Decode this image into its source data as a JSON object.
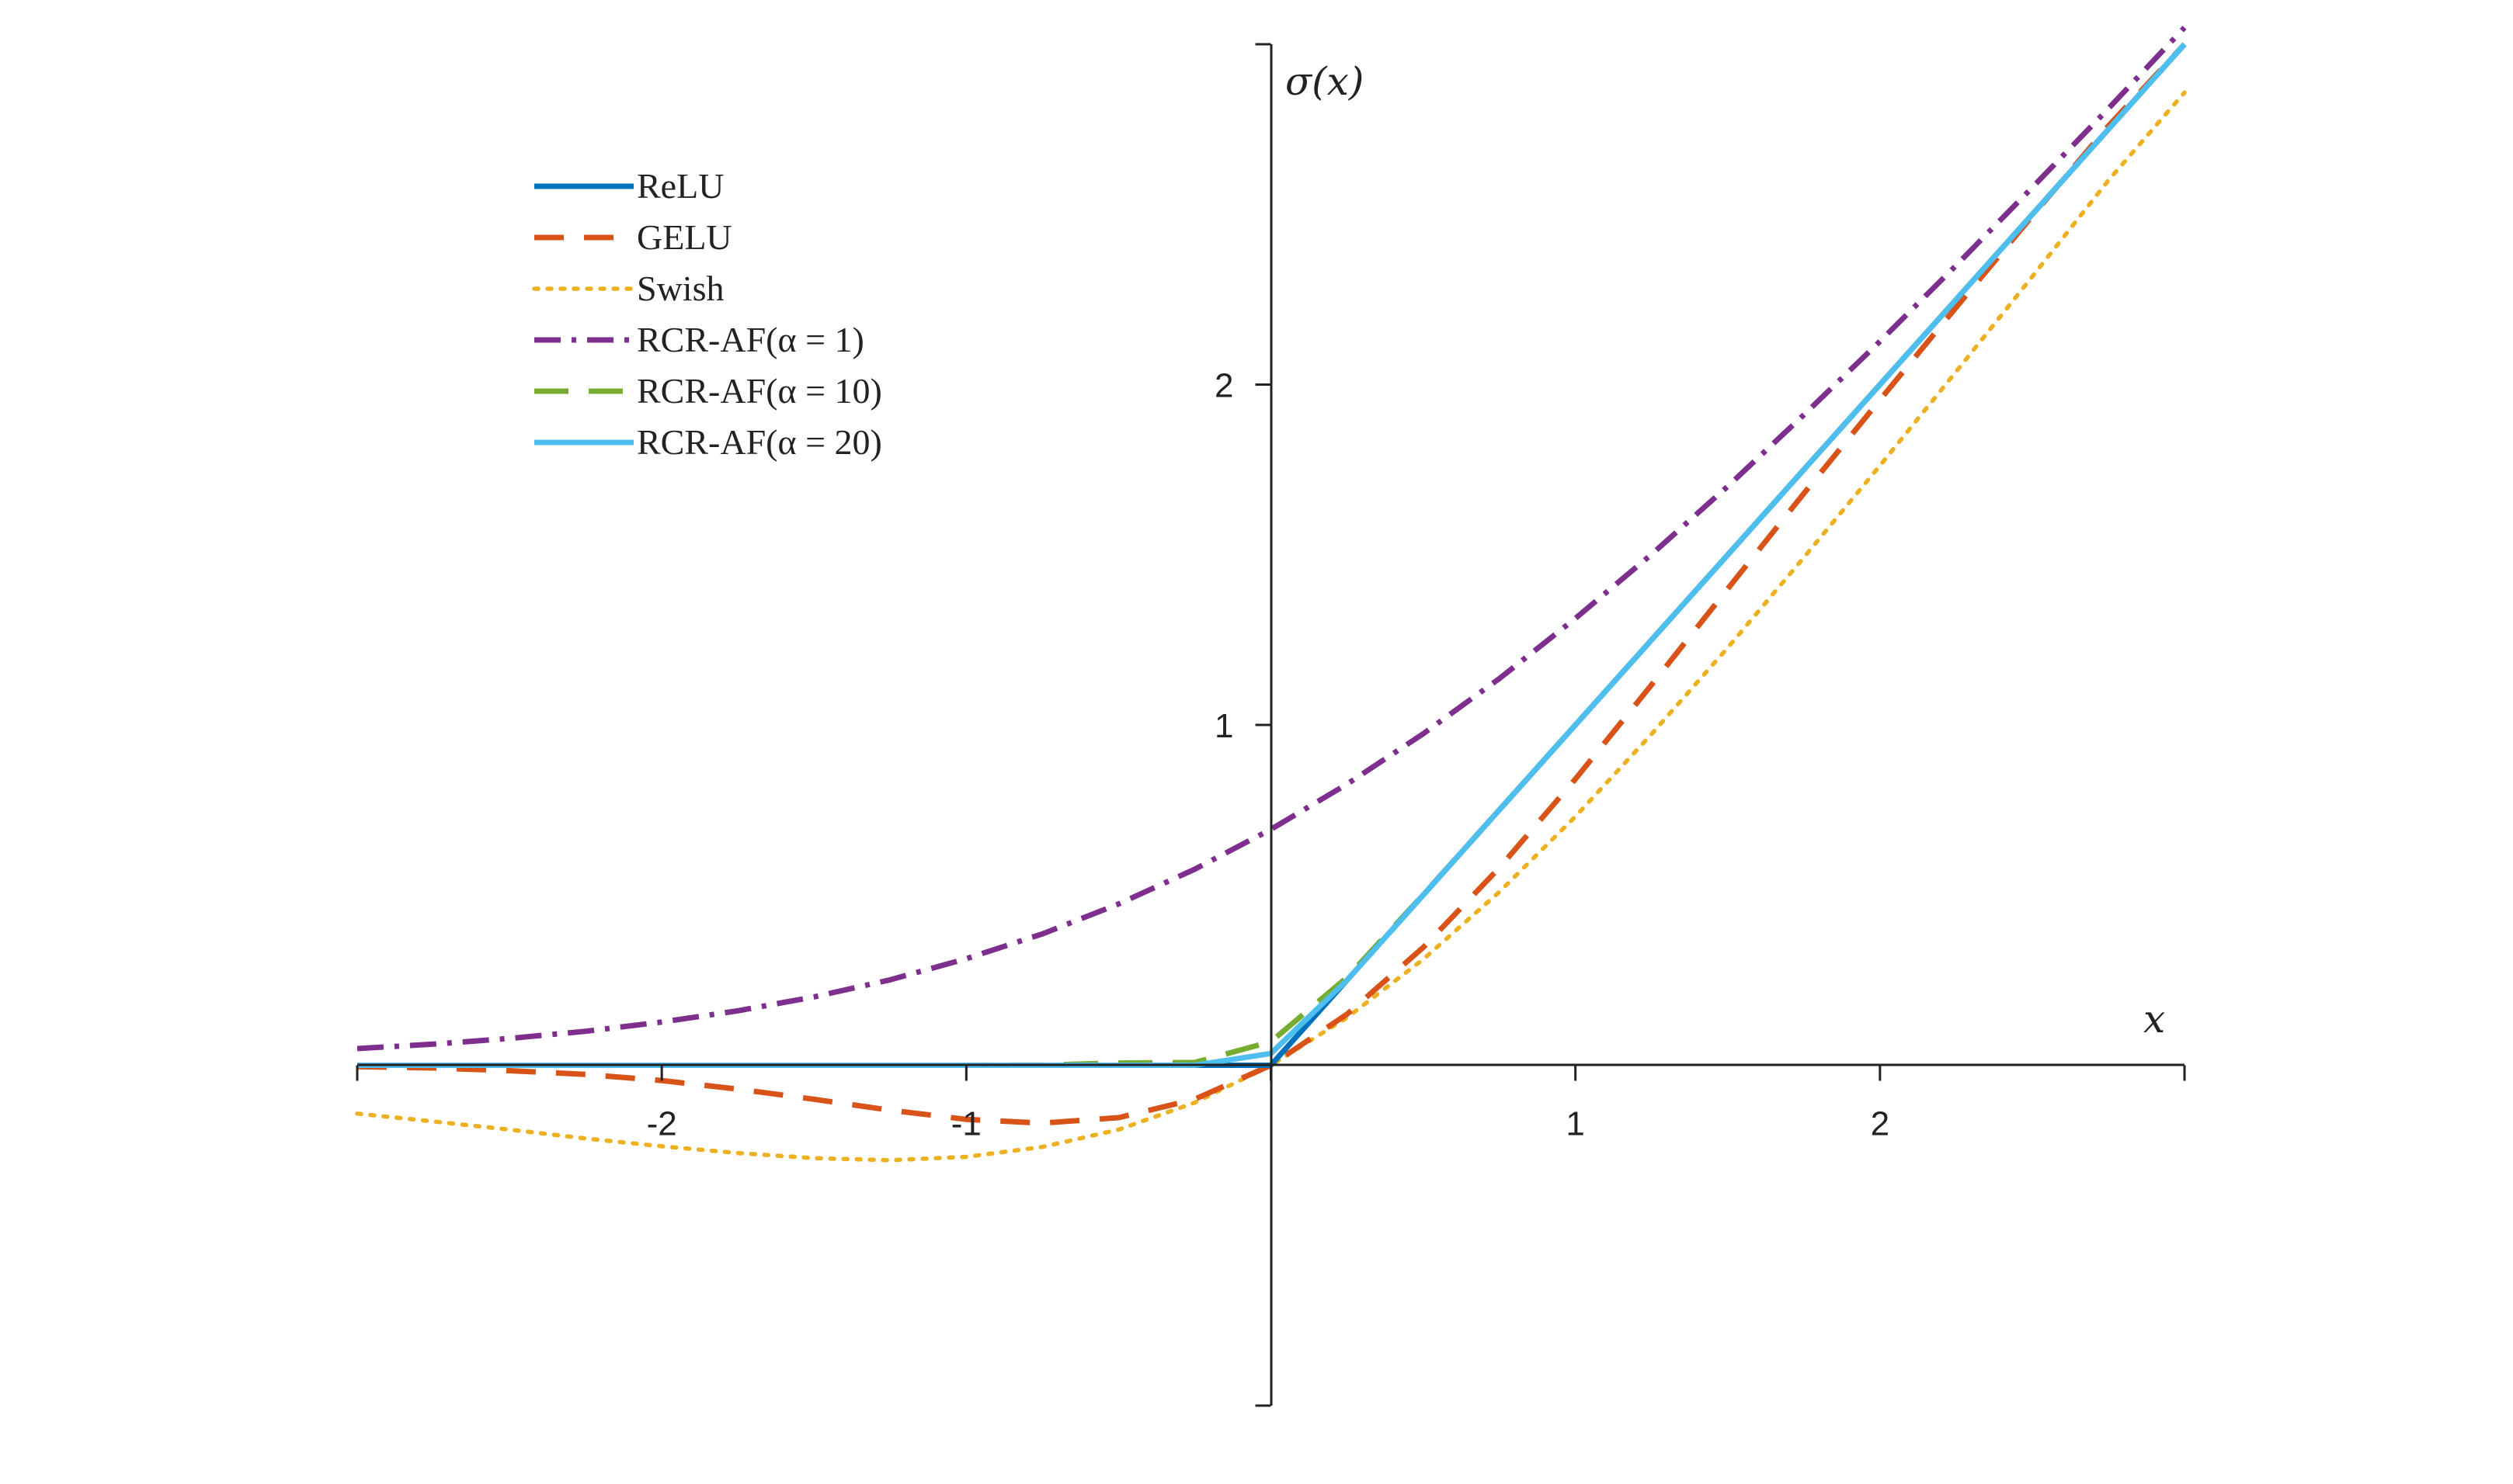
{
  "chart_data": {
    "type": "line",
    "title": "",
    "xlabel": "x",
    "ylabel": "σ(x)",
    "xlim": [
      -3,
      3
    ],
    "ylim": [
      -1,
      3
    ],
    "xticks": [
      {
        "value": -2,
        "label": "-2"
      },
      {
        "value": -1,
        "label": "-1"
      },
      {
        "value": 1,
        "label": "1"
      },
      {
        "value": 2,
        "label": "2"
      }
    ],
    "yticks": [
      {
        "value": 1,
        "label": "1"
      },
      {
        "value": 2,
        "label": "2"
      }
    ],
    "grid": false,
    "legend_position": "top-left",
    "x": [
      -3,
      -2.75,
      -2.5,
      -2.25,
      -2,
      -1.75,
      -1.5,
      -1.25,
      -1,
      -0.75,
      -0.5,
      -0.25,
      0,
      0.25,
      0.5,
      0.75,
      1,
      1.25,
      1.5,
      1.75,
      2,
      2.25,
      2.5,
      2.75,
      3
    ],
    "series": [
      {
        "name": "ReLU",
        "color": "#0072BD",
        "dash": "solid",
        "values": [
          0,
          0,
          0,
          0,
          0,
          0,
          0,
          0,
          0,
          0,
          0,
          0,
          0,
          0.25,
          0.5,
          0.75,
          1,
          1.25,
          1.5,
          1.75,
          2,
          2.25,
          2.5,
          2.75,
          3
        ]
      },
      {
        "name": "GELU",
        "color": "#D95319",
        "dash": "dashed",
        "values": [
          -0.004,
          -0.008,
          -0.016,
          -0.027,
          -0.045,
          -0.07,
          -0.1,
          -0.132,
          -0.159,
          -0.17,
          -0.154,
          -0.1,
          0,
          0.15,
          0.346,
          0.58,
          0.841,
          1.118,
          1.4,
          1.68,
          1.955,
          2.227,
          2.495,
          2.76,
          3.0
        ]
      },
      {
        "name": "Swish",
        "color": "#EDB120",
        "dash": "dotted",
        "values": [
          -0.142,
          -0.165,
          -0.189,
          -0.215,
          -0.238,
          -0.258,
          -0.273,
          -0.279,
          -0.269,
          -0.24,
          -0.189,
          -0.11,
          0,
          0.14,
          0.311,
          0.509,
          0.731,
          0.973,
          1.227,
          1.492,
          1.762,
          2.038,
          2.317,
          2.6,
          2.858
        ]
      },
      {
        "name": "RCR-AF(α = 1)",
        "color": "#7E2F8E",
        "dash": "dashdot",
        "values": [
          0.049,
          0.062,
          0.079,
          0.1,
          0.127,
          0.16,
          0.201,
          0.251,
          0.313,
          0.386,
          0.474,
          0.576,
          0.693,
          0.826,
          0.974,
          1.136,
          1.313,
          1.501,
          1.701,
          1.911,
          2.127,
          2.35,
          2.579,
          2.811,
          3.049
        ]
      },
      {
        "name": "RCR-AF(α = 10)",
        "color": "#77AC30",
        "dash": "longdash",
        "values": [
          0,
          0,
          0,
          0,
          0,
          0,
          0,
          0,
          0,
          0.0006,
          0.0067,
          0.0081,
          0.069,
          0.2581,
          0.5007,
          0.7501,
          1,
          1.25,
          1.5,
          1.75,
          2,
          2.25,
          2.5,
          2.75,
          3
        ]
      },
      {
        "name": "RCR-AF(α = 20)",
        "color": "#4DBEEE",
        "dash": "solid",
        "values": [
          0,
          0,
          0,
          0,
          0,
          0,
          0,
          0,
          0,
          0,
          0,
          0.0003,
          0.0347,
          0.25,
          0.5,
          0.75,
          1,
          1.25,
          1.5,
          1.75,
          2,
          2.25,
          2.5,
          2.75,
          3
        ]
      }
    ]
  }
}
